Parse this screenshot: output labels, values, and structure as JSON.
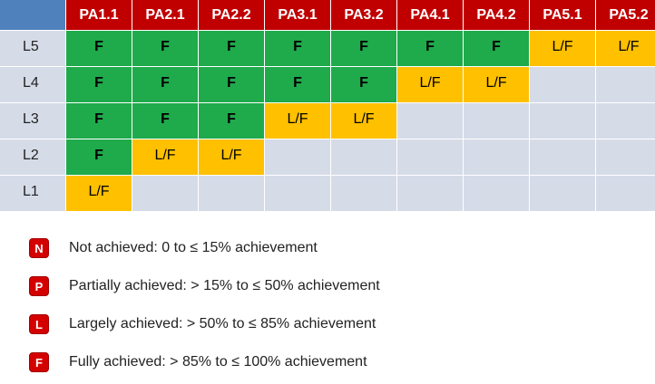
{
  "table": {
    "columns": [
      "PA1.1",
      "PA2.1",
      "PA2.2",
      "PA3.1",
      "PA3.2",
      "PA4.1",
      "PA4.2",
      "PA5.1",
      "PA5.2"
    ],
    "rows": [
      {
        "label": "L5",
        "cells": [
          "F",
          "F",
          "F",
          "F",
          "F",
          "F",
          "F",
          "L/F",
          "L/F"
        ]
      },
      {
        "label": "L4",
        "cells": [
          "F",
          "F",
          "F",
          "F",
          "F",
          "L/F",
          "L/F",
          "",
          ""
        ]
      },
      {
        "label": "L3",
        "cells": [
          "F",
          "F",
          "F",
          "L/F",
          "L/F",
          "",
          "",
          "",
          ""
        ]
      },
      {
        "label": "L2",
        "cells": [
          "F",
          "L/F",
          "L/F",
          "",
          "",
          "",
          "",
          "",
          ""
        ]
      },
      {
        "label": "L1",
        "cells": [
          "L/F",
          "",
          "",
          "",
          "",
          "",
          "",
          "",
          ""
        ]
      }
    ]
  },
  "legend": [
    {
      "badge": "N",
      "text": "Not achieved: 0 to ≤ 15% achievement"
    },
    {
      "badge": "P",
      "text": "Partially achieved: > 15% to ≤ 50% achievement"
    },
    {
      "badge": "L",
      "text": "Largely achieved: > 50% to ≤ 85% achievement"
    },
    {
      "badge": "F",
      "text": "Fully achieved:  > 85% to ≤ 100% achievement"
    }
  ],
  "colors": {
    "corner": "#4f81bd",
    "header": "#c00000",
    "fully": "#1faa4b",
    "largely_fully": "#ffc000",
    "empty": "#d6dbe8",
    "badge": "#d40000"
  }
}
